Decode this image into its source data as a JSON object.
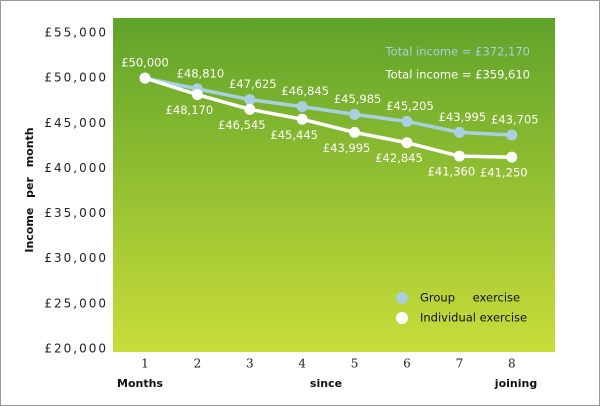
{
  "chart_data": {
    "type": "line",
    "y_label": "Income per month",
    "x_label_parts": [
      "Months",
      "since",
      "joining"
    ],
    "categories": [
      "1",
      "2",
      "3",
      "4",
      "5",
      "6",
      "7",
      "8"
    ],
    "series": [
      {
        "name": "Group exercise",
        "color": "#a9d0e2",
        "values": [
          50000,
          48810,
          47625,
          46845,
          45985,
          45205,
          43995,
          43705
        ],
        "value_labels": [
          "£50,000",
          "£48,810",
          "£47,625",
          "£46,845",
          "£45,985",
          "£45,205",
          "£43,995",
          "£43,705"
        ],
        "total": "Total income = £372,170"
      },
      {
        "name": "Individual exercise",
        "color": "#ffffff",
        "values": [
          50000,
          48170,
          46545,
          45445,
          43995,
          42845,
          41360,
          41250
        ],
        "value_labels": [
          null,
          "£48,170",
          "£46,545",
          "£45,445",
          "£43,995",
          "£42,845",
          "£41,360",
          "£41,250"
        ],
        "total": "Total income = £359,610"
      }
    ],
    "ylim": [
      20000,
      55000
    ],
    "yticks": [
      {
        "value": 20000,
        "label": "£20,000"
      },
      {
        "value": 25000,
        "label": "£25,000"
      },
      {
        "value": 30000,
        "label": "£30,000"
      },
      {
        "value": 35000,
        "label": "£35,000"
      },
      {
        "value": 40000,
        "label": "£40,000"
      },
      {
        "value": 45000,
        "label": "£45,000"
      },
      {
        "value": 50000,
        "label": "£50,000"
      },
      {
        "value": 55000,
        "label": "£55,000"
      }
    ],
    "legend": "lower right"
  }
}
